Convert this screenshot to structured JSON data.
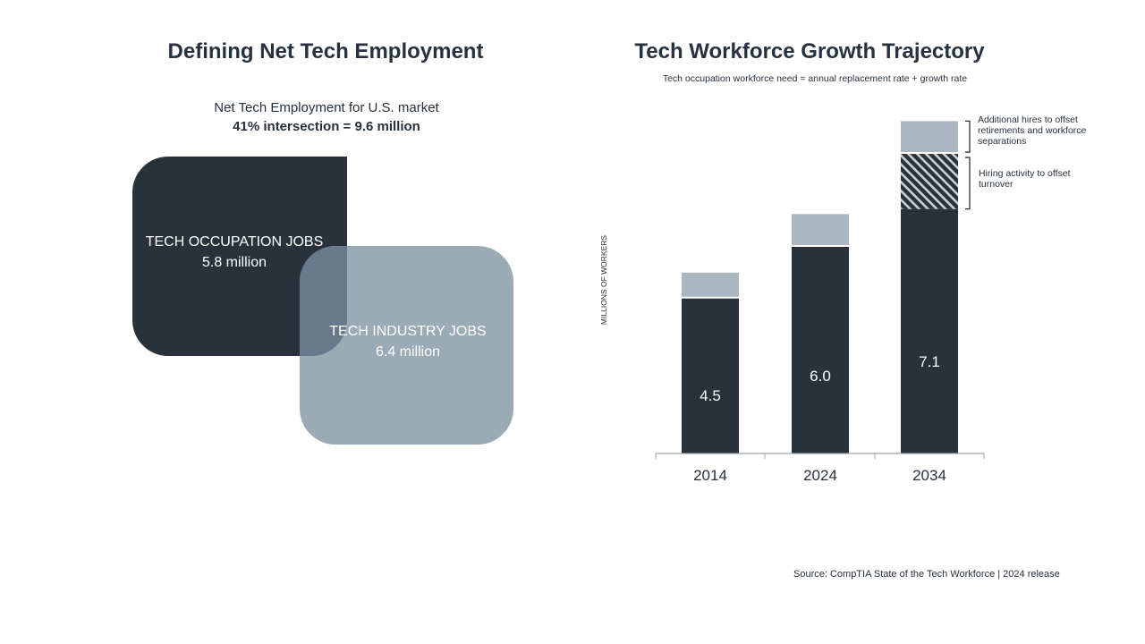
{
  "left_panel": {
    "title": "Defining Net Tech Employment",
    "caption_line1": "Net Tech Employment for U.S. market",
    "caption_line2": "41% intersection = 9.6 million",
    "occupation": {
      "label": "TECH OCCUPATION JOBS",
      "value": "5.8 million",
      "color": "#29323b"
    },
    "industry": {
      "label": "TECH INDUSTRY JOBS",
      "value": "6.4 million",
      "color": "#9aabb6"
    },
    "intersection_color": "#67798a"
  },
  "right_panel": {
    "title": "Tech Workforce Growth Trajectory",
    "subtitle": "Tech occupation workforce need = annual replacement rate + growth rate",
    "annotation_top": "Additional hires to offset retirements and workforce separations",
    "annotation_mid": "Hiring activity to offset turnover"
  },
  "chart_data": {
    "type": "bar",
    "stacked": true,
    "title": "Tech Workforce Growth Trajectory",
    "ylabel": "MILLIONS OF WORKERS",
    "categories": [
      "2014",
      "2024",
      "2034"
    ],
    "ylim": [
      0,
      10
    ],
    "series": [
      {
        "name": "Tech occupation workforce",
        "values": [
          4.5,
          6.0,
          7.1
        ],
        "color": "#29323b",
        "labels": [
          "4.5",
          "6.0",
          "7.1"
        ]
      },
      {
        "name": "Hiring activity to offset turnover",
        "values": [
          0,
          0,
          1.6
        ],
        "color": "hatch"
      },
      {
        "name": "Additional hires to offset retirements and workforce separations",
        "values": [
          0.7,
          0.9,
          0.9
        ],
        "color": "#aab7c0"
      }
    ]
  },
  "source": "Source: CompTIA State of the Tech Workforce | 2024 release"
}
